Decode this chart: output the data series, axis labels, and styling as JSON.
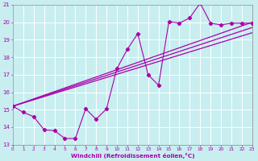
{
  "xlabel": "Windchill (Refroidissement éolien,°C)",
  "bg_color": "#c8eef0",
  "line_color": "#aa00aa",
  "xmin": 0,
  "xmax": 23,
  "ymin": 13,
  "ymax": 21,
  "yticks": [
    13,
    14,
    15,
    16,
    17,
    18,
    19,
    20,
    21
  ],
  "xticks": [
    0,
    1,
    2,
    3,
    4,
    5,
    6,
    7,
    8,
    9,
    10,
    11,
    12,
    13,
    14,
    15,
    16,
    17,
    18,
    19,
    20,
    21,
    22,
    23
  ],
  "data_x": [
    0,
    1,
    2,
    3,
    4,
    5,
    6,
    7,
    8,
    9,
    10,
    11,
    12,
    13,
    14,
    15,
    16,
    17,
    18,
    19,
    20,
    21,
    22,
    23
  ],
  "data_y": [
    15.2,
    14.85,
    14.6,
    13.85,
    13.8,
    13.35,
    13.35,
    15.05,
    14.45,
    15.05,
    17.35,
    18.45,
    19.35,
    17.0,
    16.4,
    20.05,
    19.95,
    20.25,
    21.1,
    19.95,
    19.85,
    19.95,
    19.95,
    19.95
  ],
  "trend_lines": [
    {
      "x0": 0,
      "y0": 15.2,
      "x1": 23,
      "y1": 20.0
    },
    {
      "x0": 0,
      "y0": 15.2,
      "x1": 23,
      "y1": 19.4
    },
    {
      "x0": 0,
      "y0": 15.2,
      "x1": 23,
      "y1": 19.7
    }
  ]
}
